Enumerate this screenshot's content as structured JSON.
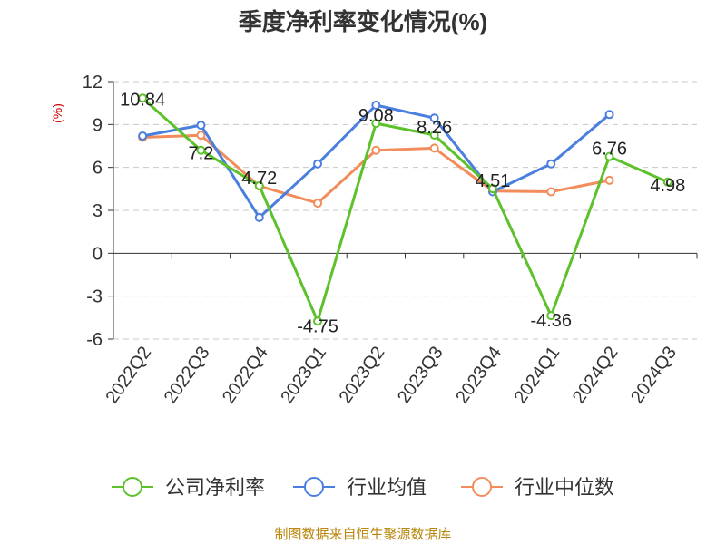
{
  "chart_data": {
    "type": "line",
    "title": "季度净利率变化情况(%)",
    "ylabel": "(%)",
    "ylim": [
      -6,
      12
    ],
    "yticks": [
      12,
      9,
      6,
      3,
      0,
      -3,
      -6
    ],
    "categories": [
      "2022Q2",
      "2022Q3",
      "2022Q4",
      "2023Q1",
      "2023Q2",
      "2023Q3",
      "2023Q4",
      "2024Q1",
      "2024Q2",
      "2024Q3"
    ],
    "grid": true,
    "legend_position": "bottom",
    "series": [
      {
        "name": "公司净利率",
        "color": "#5cc12a",
        "values": [
          10.84,
          7.2,
          4.72,
          -4.75,
          9.08,
          8.26,
          4.51,
          -4.36,
          6.76,
          4.98
        ],
        "labels": [
          "10.84",
          "7.2",
          "4.72",
          "-4.75",
          "9.08",
          "8.26",
          "4.51",
          "-4.36",
          "6.76",
          "4.98"
        ]
      },
      {
        "name": "行业均值",
        "color": "#4a7fe0",
        "values": [
          8.2,
          8.95,
          2.5,
          6.25,
          10.35,
          9.45,
          4.3,
          6.25,
          9.7,
          null
        ]
      },
      {
        "name": "行业中位数",
        "color": "#f28c5b",
        "values": [
          8.1,
          8.25,
          4.7,
          3.5,
          7.2,
          7.35,
          4.35,
          4.3,
          5.1,
          null
        ]
      }
    ]
  },
  "source": "制图数据来自恒生聚源数据库"
}
